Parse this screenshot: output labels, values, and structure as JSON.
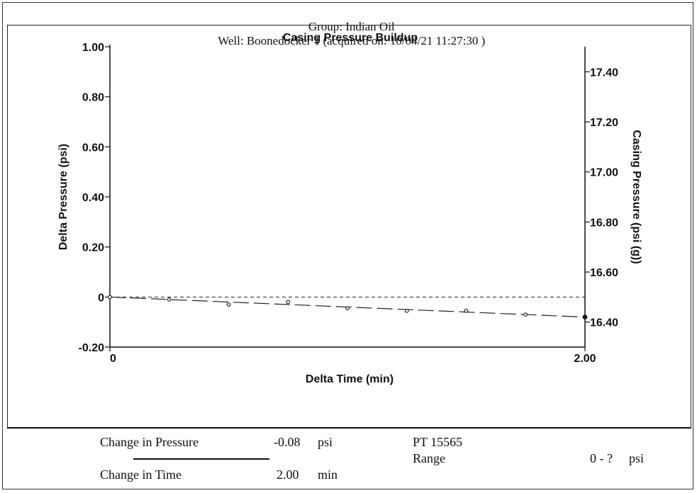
{
  "header": {
    "group": "Group: Indian Oil",
    "well": "Well: Boonedocker 1 (acquired on: 10/04/21 11:27:30 )"
  },
  "chart_data": {
    "type": "line",
    "title": "Casing Pressure Buildup",
    "xlabel": "Delta Time (min)",
    "ylabel": "Delta Pressure (psi)",
    "y2label": "Casing Pressure (psi (g))",
    "xlim": [
      0,
      2.0
    ],
    "ylim": [
      -0.2,
      1.0
    ],
    "y2lim": [
      16.3,
      17.5
    ],
    "x_tick_labels": [
      "0",
      "2.00"
    ],
    "y_ticks": [
      -0.2,
      0,
      0.2,
      0.4,
      0.6,
      0.8,
      1.0
    ],
    "y_tick_labels": [
      "-0.20",
      "0",
      "0.20",
      "0.40",
      "0.60",
      "0.80",
      "1.00"
    ],
    "y2_ticks": [
      16.4,
      16.6,
      16.8,
      17.0,
      17.2,
      17.4
    ],
    "y2_tick_labels": [
      "16.40",
      "16.60",
      "16.80",
      "17.00",
      "17.20",
      "17.40"
    ],
    "baseline": 0,
    "grid": false,
    "series": [
      {
        "x": [
          0,
          0.25,
          0.5,
          0.75,
          1.0,
          1.25,
          1.5,
          1.75,
          2.0
        ],
        "values": [
          0,
          -0.01,
          -0.03,
          -0.02,
          -0.045,
          -0.055,
          -0.055,
          -0.07,
          -0.08
        ],
        "style": "points"
      },
      {
        "x": [
          0,
          2.0
        ],
        "values": [
          0,
          -0.08
        ],
        "style": "dashed-trend"
      }
    ]
  },
  "summary": {
    "change_pressure_label": "Change in Pressure",
    "change_pressure_value": "-0.08",
    "change_pressure_unit": "psi",
    "change_time_label": "Change in Time",
    "change_time_value": "2.00",
    "change_time_unit": "min",
    "instrument": "PT 15565",
    "range_label": "Range",
    "range_value": "0 - ?",
    "range_unit": "psi"
  }
}
